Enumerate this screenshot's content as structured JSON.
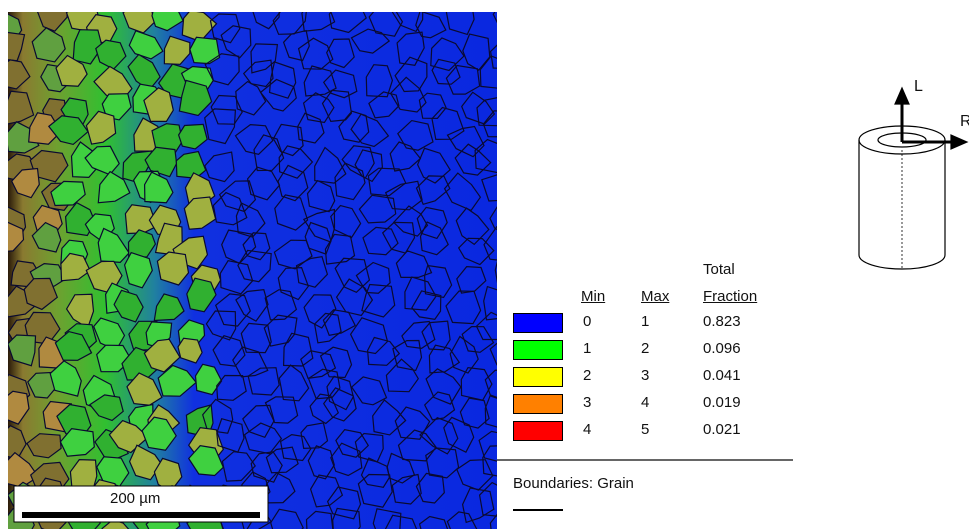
{
  "map": {
    "scale_bar": "200 µm"
  },
  "legend": {
    "headers": {
      "min": "Min",
      "max": "Max",
      "total": "Total",
      "fraction": "Fraction"
    },
    "rows": [
      {
        "color": "#0000ff",
        "min": 0,
        "max": 1,
        "fraction": 0.823
      },
      {
        "color": "#00ff00",
        "min": 1,
        "max": 2,
        "fraction": 0.096
      },
      {
        "color": "#ffff00",
        "min": 2,
        "max": 3,
        "fraction": 0.041
      },
      {
        "color": "#ff8000",
        "min": 3,
        "max": 4,
        "fraction": 0.019
      },
      {
        "color": "#ff0000",
        "min": 4,
        "max": 5,
        "fraction": 0.021
      }
    ],
    "boundaries": "Boundaries: Grain"
  },
  "axes": {
    "l": "L",
    "r": "R"
  }
}
